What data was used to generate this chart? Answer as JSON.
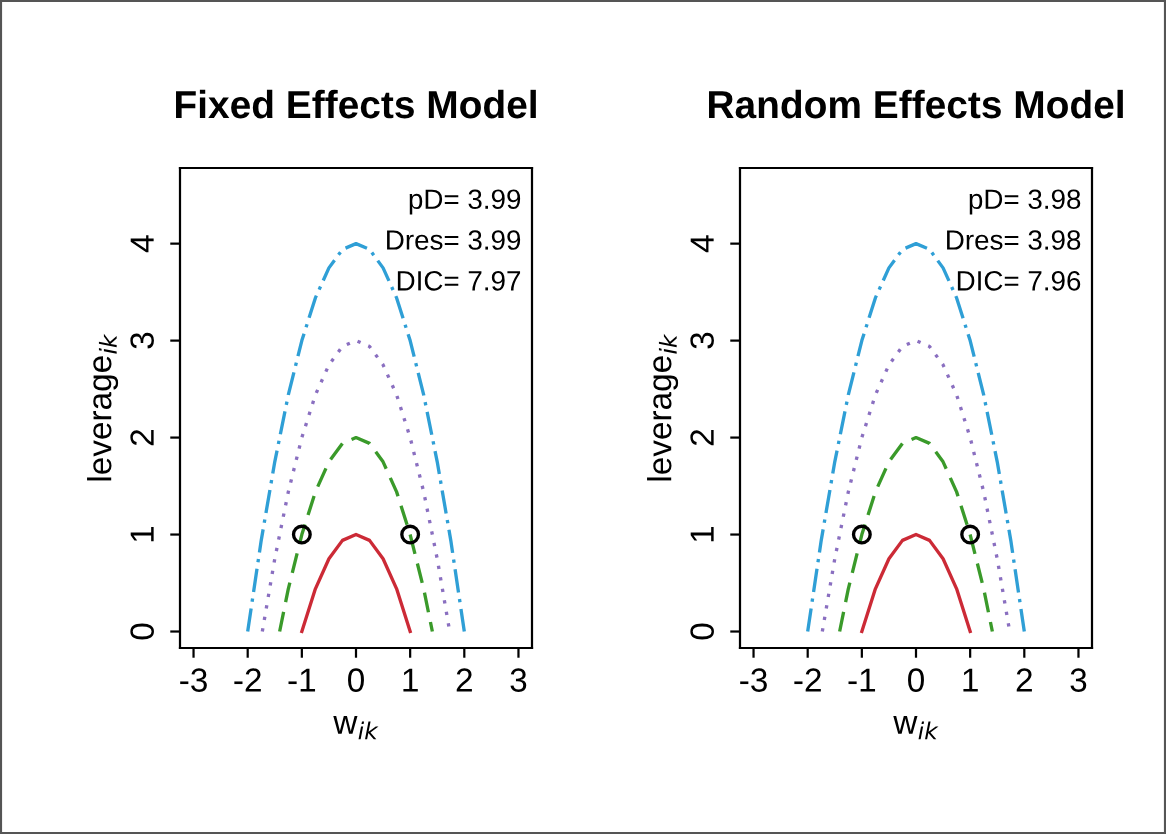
{
  "chart_data": [
    {
      "type": "line",
      "title": "Fixed Effects Model",
      "xlabel": "w$_{ik}$",
      "ylabel": "leverage$_{ik}$",
      "xlim": [
        -3.25,
        3.25
      ],
      "ylim": [
        -0.17,
        4.78
      ],
      "xticks": [
        -3,
        -2,
        -1,
        0,
        1,
        2,
        3
      ],
      "yticks": [
        0,
        1,
        2,
        3,
        4
      ],
      "grid": false,
      "legend": false,
      "annotations": [
        "pD= 3.99",
        "Dres= 3.99",
        "DIC= 7.97"
      ],
      "series": [
        {
          "color": "#cc2a36",
          "line_style": "solid",
          "x": [
            -1,
            -0.75,
            -0.5,
            -0.25,
            0,
            0.25,
            0.5,
            0.75,
            1
          ],
          "values": [
            0,
            0.44,
            0.75,
            0.94,
            1,
            0.94,
            0.75,
            0.44,
            0
          ]
        },
        {
          "color": "#3a9a2a",
          "line_style": "dashed",
          "x": [
            -1.41,
            -1.25,
            -1,
            -0.75,
            -0.5,
            -0.25,
            0,
            0.25,
            0.5,
            0.75,
            1,
            1.25,
            1.41
          ],
          "values": [
            0,
            0.44,
            1,
            1.44,
            1.75,
            1.94,
            2,
            1.94,
            1.75,
            1.44,
            1,
            0.44,
            0
          ]
        },
        {
          "color": "#8a6fc0",
          "line_style": "dotted",
          "x": [
            -1.73,
            -1.5,
            -1.25,
            -1,
            -0.75,
            -0.5,
            -0.25,
            0,
            0.25,
            0.5,
            0.75,
            1,
            1.25,
            1.5,
            1.73
          ],
          "values": [
            0,
            0.75,
            1.44,
            2,
            2.44,
            2.75,
            2.94,
            3,
            2.94,
            2.75,
            2.44,
            2,
            1.44,
            0.75,
            0
          ]
        },
        {
          "color": "#2f9fd6",
          "line_style": "dashdot",
          "x": [
            -2,
            -1.75,
            -1.5,
            -1.25,
            -1,
            -0.75,
            -0.5,
            -0.25,
            0,
            0.25,
            0.5,
            0.75,
            1,
            1.25,
            1.5,
            1.75,
            2
          ],
          "values": [
            0,
            0.94,
            1.75,
            2.44,
            3,
            3.44,
            3.75,
            3.94,
            4,
            3.94,
            3.75,
            3.44,
            3,
            2.44,
            1.75,
            0.94,
            0
          ]
        },
        {
          "type": "scatter",
          "color": "#000000",
          "marker": "circle",
          "x": [
            -1,
            1
          ],
          "values": [
            1,
            1
          ]
        }
      ]
    },
    {
      "type": "line",
      "title": "Random Effects Model",
      "xlabel": "w$_{ik}$",
      "ylabel": "leverage$_{ik}$",
      "xlim": [
        -3.25,
        3.25
      ],
      "ylim": [
        -0.17,
        4.78
      ],
      "xticks": [
        -3,
        -2,
        -1,
        0,
        1,
        2,
        3
      ],
      "yticks": [
        0,
        1,
        2,
        3,
        4
      ],
      "grid": false,
      "legend": false,
      "annotations": [
        "pD= 3.98",
        "Dres= 3.98",
        "DIC= 7.96"
      ],
      "series": [
        {
          "color": "#cc2a36",
          "line_style": "solid",
          "x": [
            -1,
            -0.75,
            -0.5,
            -0.25,
            0,
            0.25,
            0.5,
            0.75,
            1
          ],
          "values": [
            0,
            0.44,
            0.75,
            0.94,
            1,
            0.94,
            0.75,
            0.44,
            0
          ]
        },
        {
          "color": "#3a9a2a",
          "line_style": "dashed",
          "x": [
            -1.41,
            -1.25,
            -1,
            -0.75,
            -0.5,
            -0.25,
            0,
            0.25,
            0.5,
            0.75,
            1,
            1.25,
            1.41
          ],
          "values": [
            0,
            0.44,
            1,
            1.44,
            1.75,
            1.94,
            2,
            1.94,
            1.75,
            1.44,
            1,
            0.44,
            0
          ]
        },
        {
          "color": "#8a6fc0",
          "line_style": "dotted",
          "x": [
            -1.73,
            -1.5,
            -1.25,
            -1,
            -0.75,
            -0.5,
            -0.25,
            0,
            0.25,
            0.5,
            0.75,
            1,
            1.25,
            1.5,
            1.73
          ],
          "values": [
            0,
            0.75,
            1.44,
            2,
            2.44,
            2.75,
            2.94,
            3,
            2.94,
            2.75,
            2.44,
            2,
            1.44,
            0.75,
            0
          ]
        },
        {
          "color": "#2f9fd6",
          "line_style": "dashdot",
          "x": [
            -2,
            -1.75,
            -1.5,
            -1.25,
            -1,
            -0.75,
            -0.5,
            -0.25,
            0,
            0.25,
            0.5,
            0.75,
            1,
            1.25,
            1.5,
            1.75,
            2
          ],
          "values": [
            0,
            0.94,
            1.75,
            2.44,
            3,
            3.44,
            3.75,
            3.94,
            4,
            3.94,
            3.75,
            3.44,
            3,
            2.44,
            1.75,
            0.94,
            0
          ]
        },
        {
          "type": "scatter",
          "color": "#000000",
          "marker": "circle",
          "x": [
            -1,
            1
          ],
          "values": [
            1,
            1
          ]
        }
      ]
    }
  ]
}
